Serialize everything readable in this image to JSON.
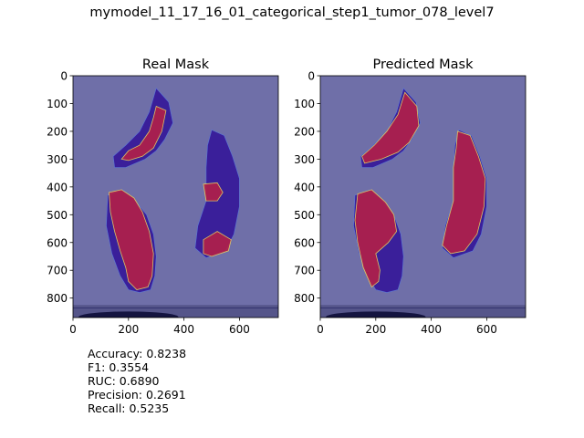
{
  "figure": {
    "suptitle": "mymodel_11_17_16_01_categorical_step1_tumor_078_level7"
  },
  "chart_data": [
    {
      "type": "heatmap",
      "title": "Real Mask",
      "xlabel": "",
      "ylabel": "",
      "xlim": [
        0,
        740
      ],
      "ylim": [
        870,
        0
      ],
      "xticks": [
        0,
        200,
        400,
        600
      ],
      "yticks": [
        0,
        100,
        200,
        300,
        400,
        500,
        600,
        700,
        800
      ],
      "colormap": "jet",
      "overlay_colors": {
        "background": "#6f6fa8",
        "tissue": "#3a1f9a",
        "tumor": "#b0204a"
      }
    },
    {
      "type": "heatmap",
      "title": "Predicted Mask",
      "xlabel": "",
      "ylabel": "",
      "xlim": [
        0,
        740
      ],
      "ylim": [
        870,
        0
      ],
      "xticks": [
        0,
        200,
        400,
        600
      ],
      "yticks": [
        0,
        100,
        200,
        300,
        400,
        500,
        600,
        700,
        800
      ],
      "colormap": "jet",
      "overlay_colors": {
        "background": "#6f6fa8",
        "tissue": "#3a1f9a",
        "tumor": "#b0204a"
      }
    }
  ],
  "metrics": [
    "Accuracy: 0.8238",
    "F1: 0.3554",
    "RUC: 0.6890",
    "Precision: 0.2691",
    "Recall: 0.5235"
  ]
}
